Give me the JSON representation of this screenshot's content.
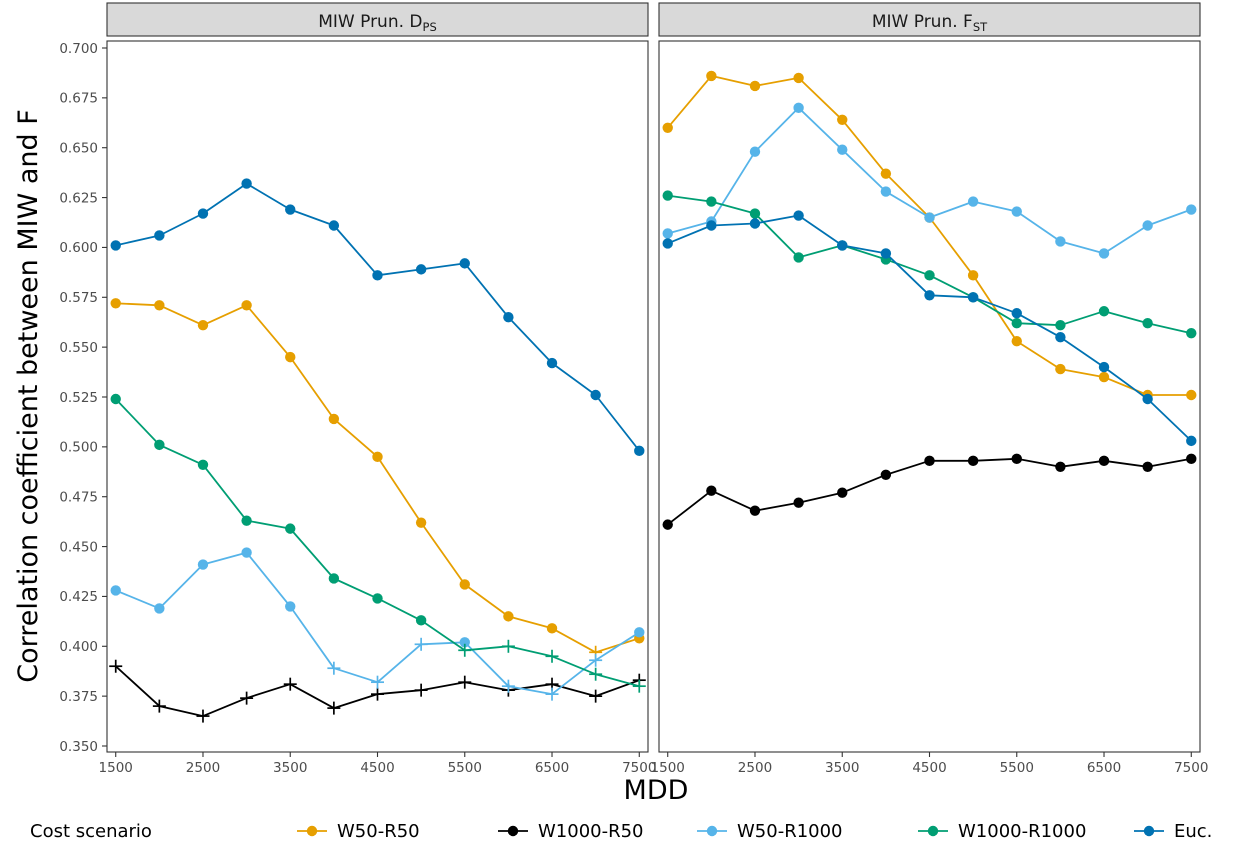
{
  "chart_data": {
    "type": "line",
    "ylabel": "Correlation coefficient between MIW and F",
    "xlabel": "MDD",
    "x": [
      1500,
      2000,
      2500,
      3000,
      3500,
      4000,
      4500,
      5000,
      5500,
      6000,
      6500,
      7000,
      7500
    ],
    "x_ticks": [
      1500,
      2500,
      3500,
      4500,
      5500,
      6500,
      7500
    ],
    "x_tick_labels": [
      "1500",
      "2500",
      "3500",
      "4500",
      "5500",
      "6500",
      "7500"
    ],
    "xlim": [
      1400,
      7600
    ],
    "ylim": [
      0.35,
      0.7
    ],
    "y_ticks": [
      0.35,
      0.375,
      0.4,
      0.425,
      0.45,
      0.475,
      0.5,
      0.525,
      0.55,
      0.575,
      0.6,
      0.625,
      0.65,
      0.675,
      0.7
    ],
    "y_tick_labels": [
      "0.350",
      "0.375",
      "0.400",
      "0.425",
      "0.450",
      "0.475",
      "0.500",
      "0.525",
      "0.550",
      "0.575",
      "0.600",
      "0.625",
      "0.650",
      "0.675",
      "0.700"
    ],
    "grid": false,
    "legend": {
      "title": "Cost scenario",
      "position": "bottom",
      "entries": [
        {
          "name": "W50-R50",
          "color": "#E69F00"
        },
        {
          "name": "W1000-R50",
          "color": "#000000"
        },
        {
          "name": "W50-R1000",
          "color": "#56B4E9"
        },
        {
          "name": "W1000-R1000",
          "color": "#009E73"
        },
        {
          "name": "Euc.",
          "color": "#0072B2"
        }
      ]
    },
    "panels": [
      {
        "title_main": "MIW Prun. D",
        "title_sub": "PS",
        "series": [
          {
            "name": "W50-R50",
            "color": "#E69F00",
            "values": [
              0.572,
              0.571,
              0.561,
              0.571,
              0.545,
              0.514,
              0.495,
              0.462,
              0.431,
              0.415,
              0.409,
              0.397,
              0.404
            ],
            "markers": [
              "dot",
              "dot",
              "dot",
              "dot",
              "dot",
              "dot",
              "dot",
              "dot",
              "dot",
              "dot",
              "dot",
              "plus",
              "dot"
            ]
          },
          {
            "name": "W1000-R50",
            "color": "#000000",
            "values": [
              0.39,
              0.37,
              0.365,
              0.374,
              0.381,
              0.369,
              0.376,
              0.378,
              0.382,
              0.378,
              0.381,
              0.375,
              0.383
            ],
            "markers": [
              "plus",
              "plus",
              "plus",
              "plus",
              "plus",
              "plus",
              "plus",
              "plus",
              "plus",
              "plus",
              "plus",
              "plus",
              "plus"
            ]
          },
          {
            "name": "W50-R1000",
            "color": "#56B4E9",
            "values": [
              0.428,
              0.419,
              0.441,
              0.447,
              0.42,
              0.389,
              0.382,
              0.401,
              0.402,
              0.38,
              0.376,
              0.393,
              0.407
            ],
            "markers": [
              "dot",
              "dot",
              "dot",
              "dot",
              "dot",
              "plus",
              "plus",
              "plus",
              "dot",
              "plus",
              "plus",
              "plus",
              "dot"
            ]
          },
          {
            "name": "W1000-R1000",
            "color": "#009E73",
            "values": [
              0.524,
              0.501,
              0.491,
              0.463,
              0.459,
              0.434,
              0.424,
              0.413,
              0.398,
              0.4,
              0.395,
              0.386,
              0.38
            ],
            "markers": [
              "dot",
              "dot",
              "dot",
              "dot",
              "dot",
              "dot",
              "dot",
              "dot",
              "plus",
              "plus",
              "plus",
              "plus",
              "plus"
            ]
          },
          {
            "name": "Euc.",
            "color": "#0072B2",
            "values": [
              0.601,
              0.606,
              0.617,
              0.632,
              0.619,
              0.611,
              0.586,
              0.589,
              0.592,
              0.565,
              0.542,
              0.526,
              0.498
            ],
            "markers": [
              "dot",
              "dot",
              "dot",
              "dot",
              "dot",
              "dot",
              "dot",
              "dot",
              "dot",
              "dot",
              "dot",
              "dot",
              "dot"
            ]
          }
        ]
      },
      {
        "title_main": "MIW Prun. F",
        "title_sub": "ST",
        "series": [
          {
            "name": "W50-R50",
            "color": "#E69F00",
            "values": [
              0.66,
              0.686,
              0.681,
              0.685,
              0.664,
              0.637,
              0.615,
              0.586,
              0.553,
              0.539,
              0.535,
              0.526,
              0.526
            ],
            "markers": [
              "dot",
              "dot",
              "dot",
              "dot",
              "dot",
              "dot",
              "dot",
              "dot",
              "dot",
              "dot",
              "dot",
              "dot",
              "dot"
            ]
          },
          {
            "name": "W1000-R50",
            "color": "#000000",
            "values": [
              0.461,
              0.478,
              0.468,
              0.472,
              0.477,
              0.486,
              0.493,
              0.493,
              0.494,
              0.49,
              0.493,
              0.49,
              0.494
            ],
            "markers": [
              "dot",
              "dot",
              "dot",
              "dot",
              "dot",
              "dot",
              "dot",
              "dot",
              "dot",
              "dot",
              "dot",
              "dot",
              "dot"
            ]
          },
          {
            "name": "W50-R1000",
            "color": "#56B4E9",
            "values": [
              0.607,
              0.613,
              0.648,
              0.67,
              0.649,
              0.628,
              0.615,
              0.623,
              0.618,
              0.603,
              0.597,
              0.611,
              0.619
            ],
            "markers": [
              "dot",
              "dot",
              "dot",
              "dot",
              "dot",
              "dot",
              "dot",
              "dot",
              "dot",
              "dot",
              "dot",
              "dot",
              "dot"
            ]
          },
          {
            "name": "W1000-R1000",
            "color": "#009E73",
            "values": [
              0.626,
              0.623,
              0.617,
              0.595,
              0.601,
              0.594,
              0.586,
              0.575,
              0.562,
              0.561,
              0.568,
              0.562,
              0.557
            ],
            "markers": [
              "dot",
              "dot",
              "dot",
              "dot",
              "dot",
              "dot",
              "dot",
              "dot",
              "dot",
              "dot",
              "dot",
              "dot",
              "dot"
            ]
          },
          {
            "name": "Euc.",
            "color": "#0072B2",
            "values": [
              0.602,
              0.611,
              0.612,
              0.616,
              0.601,
              0.597,
              0.576,
              0.575,
              0.567,
              0.555,
              0.54,
              0.524,
              0.503
            ],
            "markers": [
              "dot",
              "dot",
              "dot",
              "dot",
              "dot",
              "dot",
              "dot",
              "dot",
              "dot",
              "dot",
              "dot",
              "dot",
              "dot"
            ]
          }
        ]
      }
    ]
  }
}
